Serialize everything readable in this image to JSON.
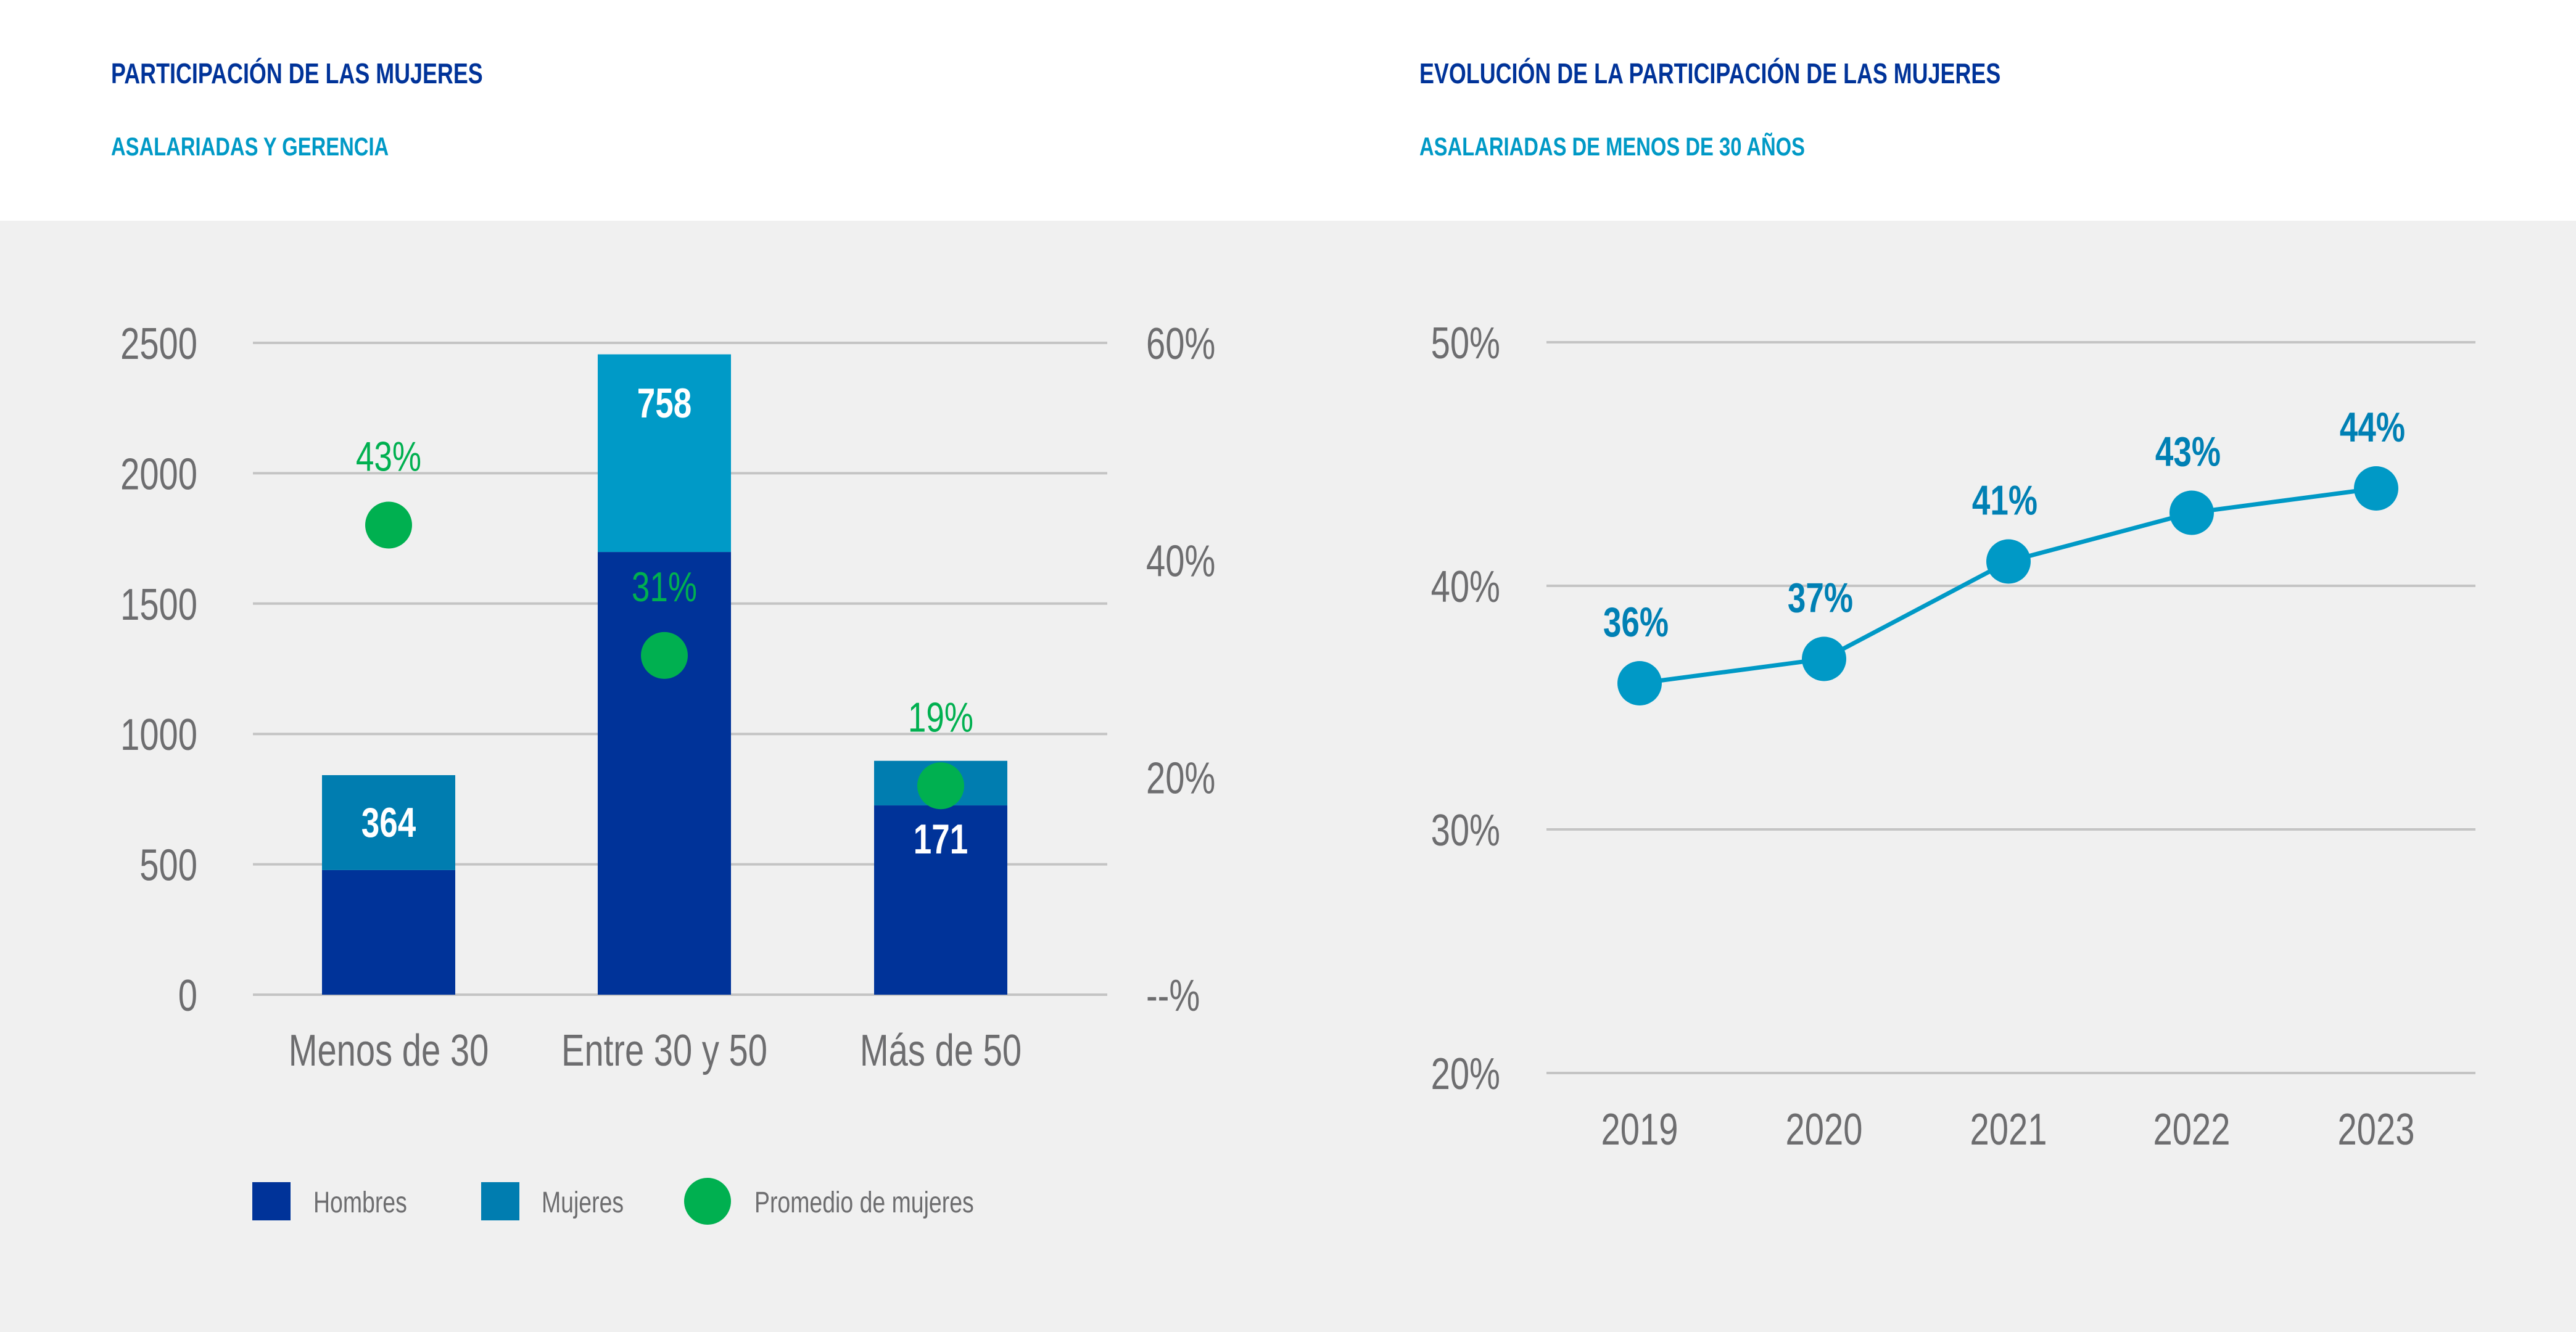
{
  "left_panel": {
    "title": "PARTICIPACIÓN DE LAS MUJERES",
    "subtitle": "ASALARIADAS Y GERENCIA"
  },
  "right_panel": {
    "title": "EVOLUCIÓN DE LA PARTICIPACIÓN DE LAS MUJERES",
    "subtitle": "ASALARIADAS DE MENOS DE 30 AÑOS"
  },
  "colors": {
    "title": "#003399",
    "subtitle": "#0099c6",
    "hombres": "#003399",
    "mujeres_menos30": "#007db0",
    "mujeres_entre": "#009ac7",
    "mujeres_mas50": "#007db0",
    "promedio": "#00b050",
    "line": "#0099c6",
    "gridline": "#c4c4c4",
    "axis_text": "#6d6d6f"
  },
  "chart_data": [
    {
      "type": "bar",
      "stacked": true,
      "title": "PARTICIPACIÓN DE LAS MUJERES",
      "subtitle": "ASALARIADAS Y GERENCIA",
      "categories": [
        "Menos de 30",
        "Entre 30 y 50",
        "Más de 50"
      ],
      "series": [
        {
          "name": "Hombres",
          "values": [
            478,
            1698,
            726
          ]
        },
        {
          "name": "Mujeres",
          "values": [
            364,
            758,
            171
          ],
          "data_labels": [
            "364",
            "758",
            "171"
          ]
        }
      ],
      "secondary_series": {
        "name": "Promedio de mujeres",
        "type": "scatter",
        "values": [
          43,
          31,
          19
        ],
        "data_labels": [
          "43%",
          "31%",
          "19%"
        ],
        "unit": "%"
      },
      "ylim": [
        0,
        2500
      ],
      "yticks": [
        "0",
        "500",
        "1000",
        "1500",
        "2000",
        "2500"
      ],
      "y2lim": [
        0,
        60
      ],
      "y2ticks": [
        "--%",
        "20%",
        "40%",
        "60%"
      ],
      "legend": [
        "Hombres",
        "Mujeres",
        "Promedio de mujeres"
      ],
      "legend_position": "bottom",
      "grid": true,
      "xlabel": "",
      "ylabel": ""
    },
    {
      "type": "line",
      "title": "EVOLUCIÓN DE LA PARTICIPACIÓN DE LAS MUJERES",
      "subtitle": "ASALARIADAS DE MENOS DE 30 AÑOS",
      "x": [
        "2019",
        "2020",
        "2021",
        "2022",
        "2023"
      ],
      "values": [
        36,
        37,
        41,
        43,
        44
      ],
      "data_labels": [
        "36%",
        "37%",
        "41%",
        "43%",
        "44%"
      ],
      "ylim": [
        20,
        50
      ],
      "yticks": [
        "20%",
        "30%",
        "40%",
        "50%"
      ],
      "grid": true,
      "xlabel": "",
      "ylabel": ""
    }
  ]
}
